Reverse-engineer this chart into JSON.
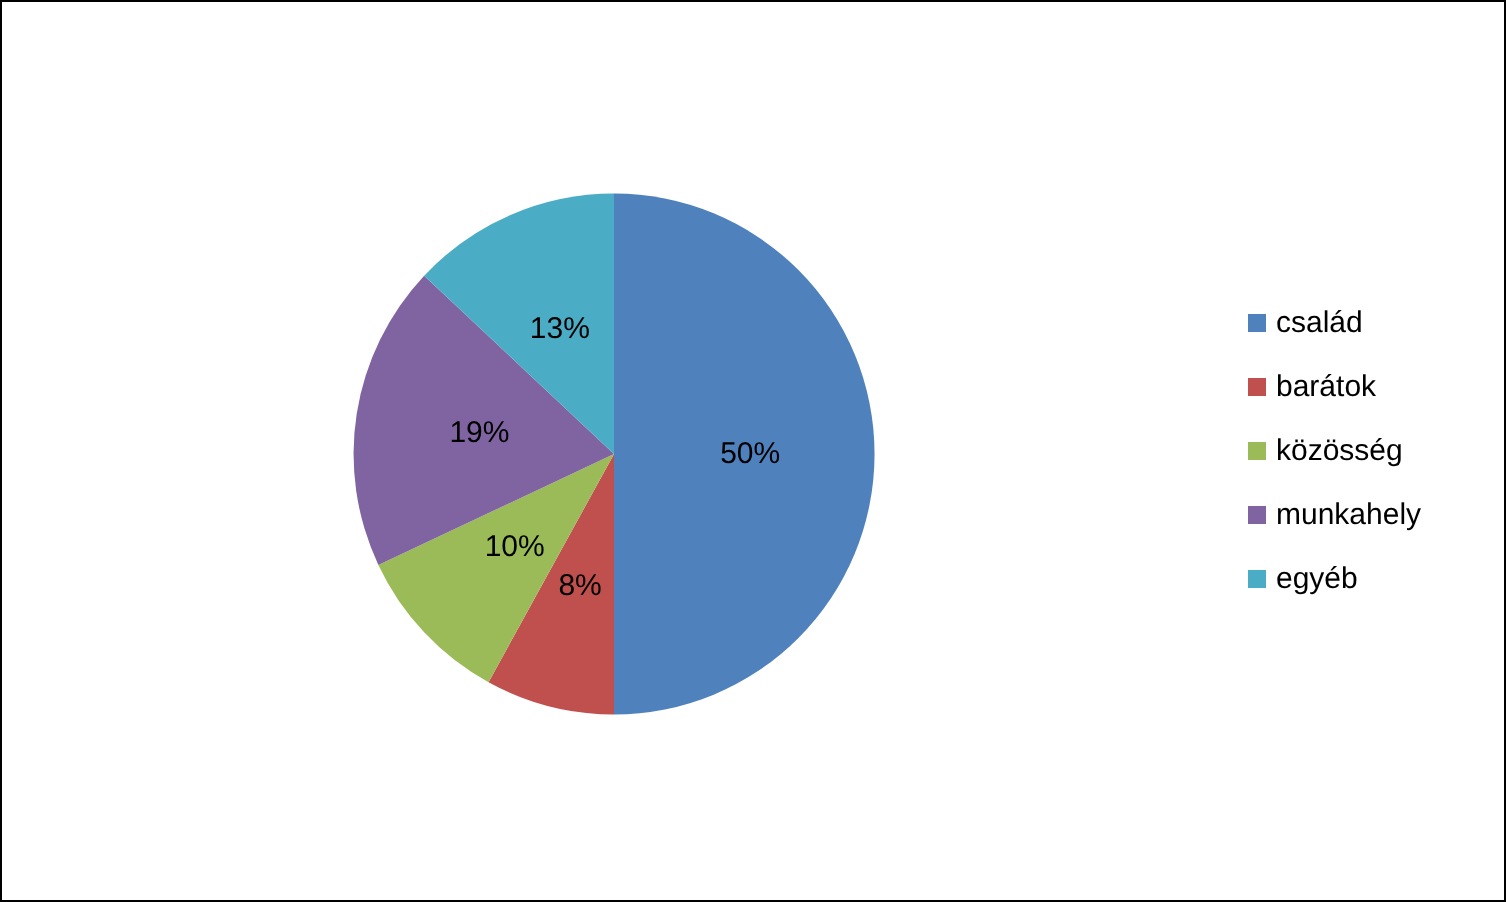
{
  "chart_data": {
    "type": "pie",
    "categories": [
      "család",
      "barátok",
      "közösség",
      "munkahely",
      "egyéb"
    ],
    "values": [
      50,
      8,
      10,
      19,
      13
    ],
    "colors": [
      "#4f81bd",
      "#c0504d",
      "#9bbb59",
      "#8064a2",
      "#4bacc6"
    ],
    "value_labels": [
      "50%",
      "8%",
      "10%",
      "19%",
      "13%"
    ],
    "legend": "right"
  }
}
